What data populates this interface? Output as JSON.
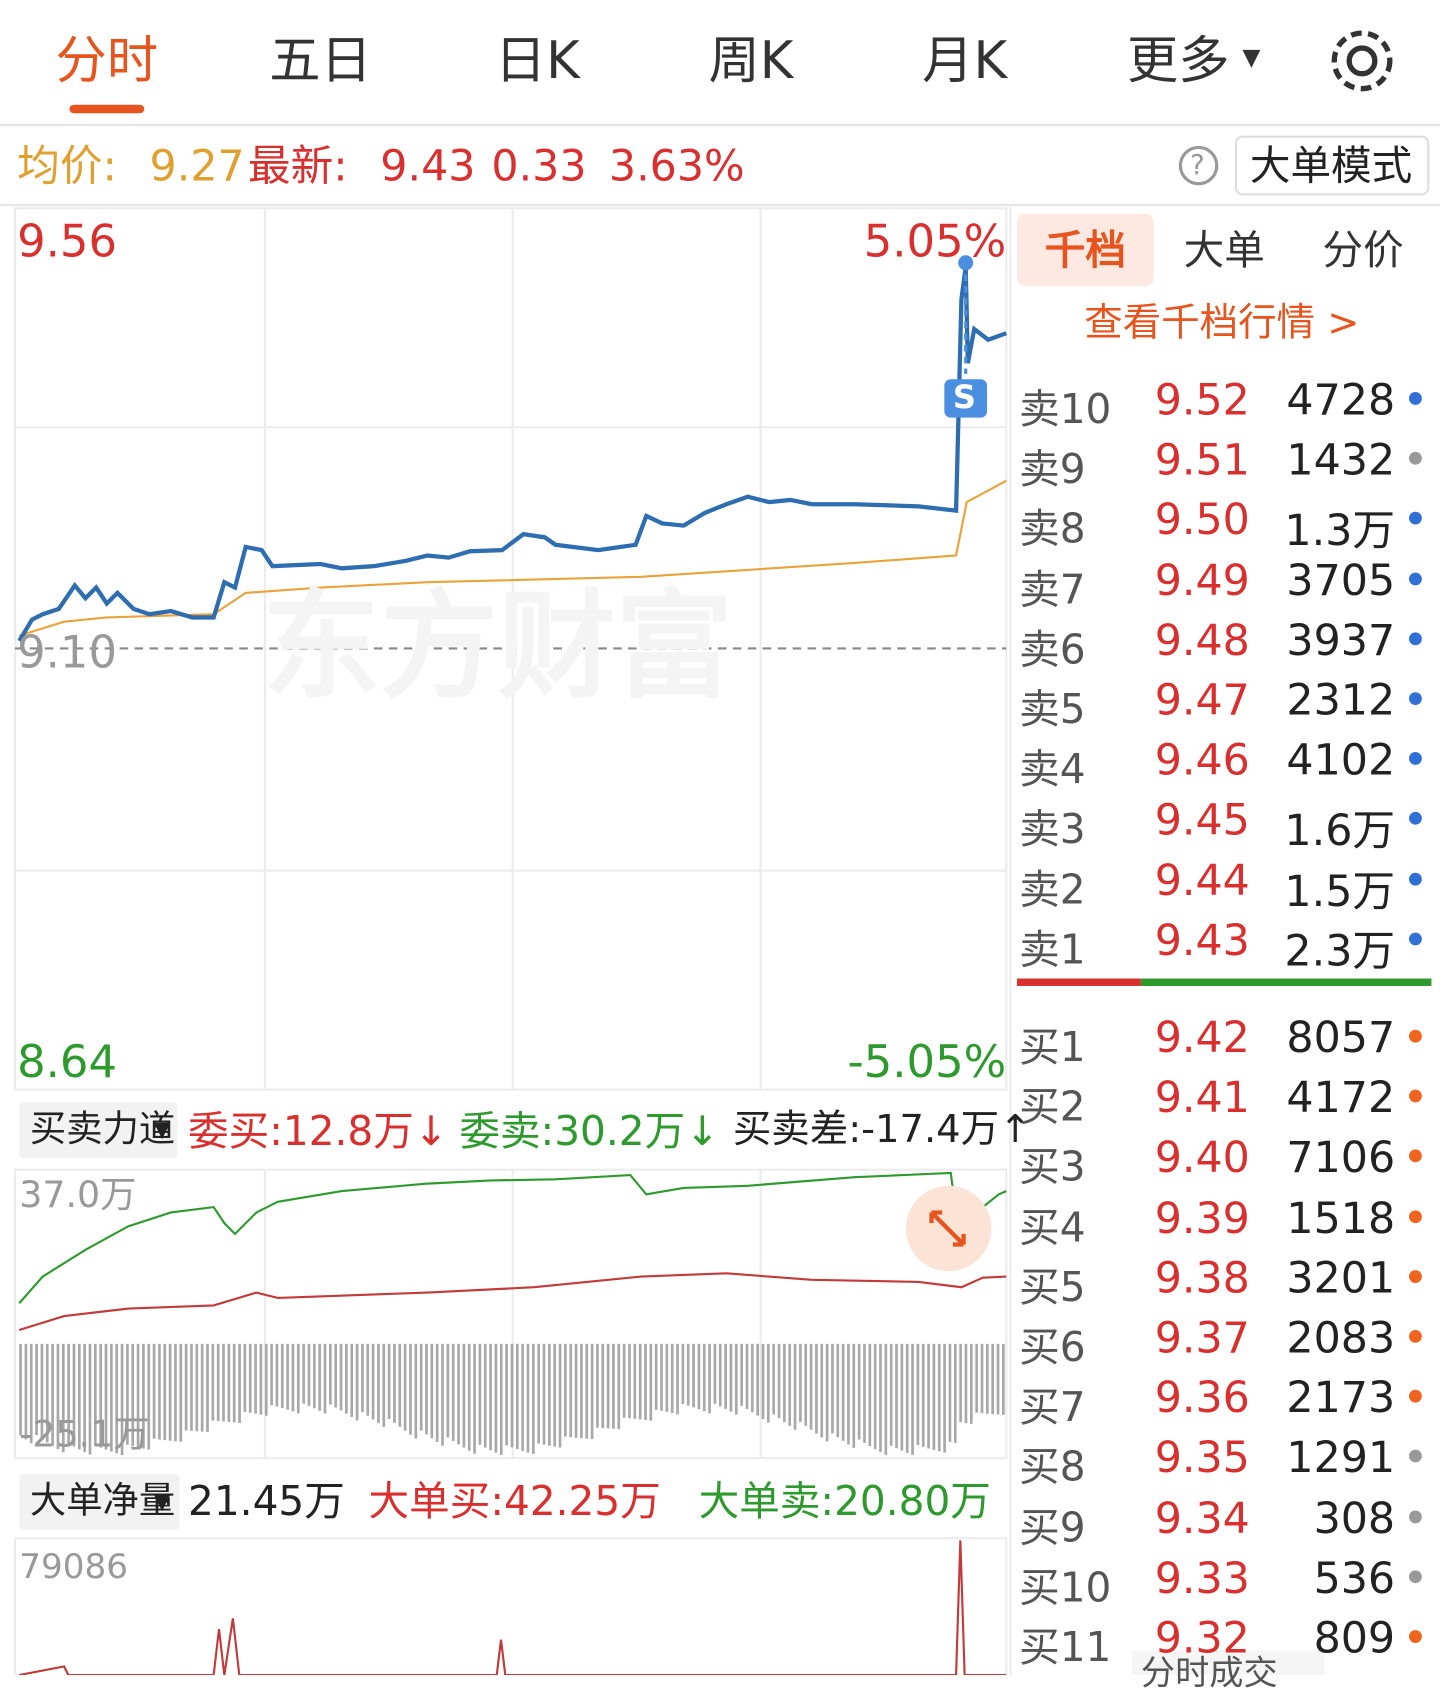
{
  "tabs": [
    "分时",
    "五日",
    "日K",
    "周K",
    "月K",
    "更多"
  ],
  "quote": {
    "avg_label": "均价:",
    "avg": "9.27",
    "latest_label": "最新:",
    "latest": "9.43",
    "change": "0.33",
    "pct": "3.63%",
    "help": "?",
    "mode_button": "大单模式"
  },
  "price_chart": {
    "high": "9.56",
    "high_pct": "5.05%",
    "base": "9.10",
    "low": "8.64",
    "low_pct": "-5.05%",
    "marker": "S",
    "watermark": "东方财富"
  },
  "force": {
    "selector": "买卖力道",
    "bid": "委买:12.8万",
    "bid_arrow": "↓",
    "ask": "委卖:30.2万",
    "ask_arrow": "↓",
    "diff": "买卖差:-17.4万",
    "diff_arrow": "↑",
    "top": "37.0万",
    "bottom": "-25.1万"
  },
  "big_order": {
    "selector": "大单净量",
    "net": "21.45万",
    "buy": "大单买:42.25万",
    "sell": "大单卖:20.80万",
    "top": "79086"
  },
  "book": {
    "tabs": [
      "千档",
      "大单",
      "分价"
    ],
    "link": "查看千档行情 >",
    "asks": [
      {
        "level": "卖10",
        "price": "9.52",
        "volume": "4728",
        "dot": "#2f6fd6"
      },
      {
        "level": "卖9",
        "price": "9.51",
        "volume": "1432",
        "dot": "#999999"
      },
      {
        "level": "卖8",
        "price": "9.50",
        "volume": "1.3万",
        "dot": "#2f6fd6"
      },
      {
        "level": "卖7",
        "price": "9.49",
        "volume": "3705",
        "dot": "#2f6fd6"
      },
      {
        "level": "卖6",
        "price": "9.48",
        "volume": "3937",
        "dot": "#2f6fd6"
      },
      {
        "level": "卖5",
        "price": "9.47",
        "volume": "2312",
        "dot": "#2f6fd6"
      },
      {
        "level": "卖4",
        "price": "9.46",
        "volume": "4102",
        "dot": "#2f6fd6"
      },
      {
        "level": "卖3",
        "price": "9.45",
        "volume": "1.6万",
        "dot": "#2f6fd6"
      },
      {
        "level": "卖2",
        "price": "9.44",
        "volume": "1.5万",
        "dot": "#2f6fd6"
      },
      {
        "level": "卖1",
        "price": "9.43",
        "volume": "2.3万",
        "dot": "#2f6fd6"
      }
    ],
    "bids": [
      {
        "level": "买1",
        "price": "9.42",
        "volume": "8057",
        "dot": "#f0641e"
      },
      {
        "level": "买2",
        "price": "9.41",
        "volume": "4172",
        "dot": "#f0641e"
      },
      {
        "level": "买3",
        "price": "9.40",
        "volume": "7106",
        "dot": "#f0641e"
      },
      {
        "level": "买4",
        "price": "9.39",
        "volume": "1518",
        "dot": "#f0641e"
      },
      {
        "level": "买5",
        "price": "9.38",
        "volume": "3201",
        "dot": "#f0641e"
      },
      {
        "level": "买6",
        "price": "9.37",
        "volume": "2083",
        "dot": "#f0641e"
      },
      {
        "level": "买7",
        "price": "9.36",
        "volume": "2173",
        "dot": "#f0641e"
      },
      {
        "level": "买8",
        "price": "9.35",
        "volume": "1291",
        "dot": "#999999"
      },
      {
        "level": "买9",
        "price": "9.34",
        "volume": "308",
        "dot": "#999999"
      },
      {
        "level": "买10",
        "price": "9.33",
        "volume": "536",
        "dot": "#999999"
      },
      {
        "level": "买11",
        "price": "9.32",
        "volume": "809",
        "dot": "#f0641e"
      }
    ],
    "footer": "分时成交"
  }
}
